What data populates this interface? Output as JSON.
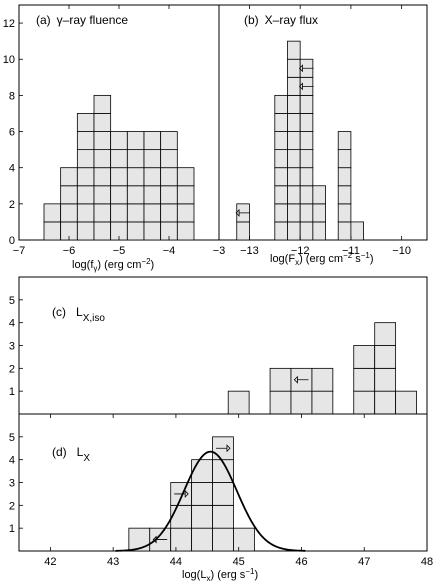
{
  "chart_data": [
    {
      "id": "a",
      "type": "bar",
      "title_prefix": "(a)",
      "title": "γ–ray fluence",
      "xlabel_main": "log(f",
      "xlabel_sub": "γ",
      "xlabel_units": ")  (erg cm",
      "xlabel_sup": "−2",
      "xlabel_end": ")",
      "xlim": [
        -7,
        -3
      ],
      "ylim": [
        0,
        13
      ],
      "xticks": [
        -7,
        -6,
        -5,
        -4,
        -3
      ],
      "xtick_labels": [
        "−7",
        "−6",
        "−5",
        "−4",
        "−3"
      ],
      "yticks": [
        0,
        2,
        4,
        6,
        8,
        10,
        12
      ],
      "ytick_labels": [
        "0",
        "2",
        "4",
        "6",
        "8",
        "10",
        "12"
      ],
      "bin_width": 0.333,
      "bins": [
        {
          "left": -6.5,
          "count": 2
        },
        {
          "left": -6.167,
          "count": 4
        },
        {
          "left": -5.833,
          "count": 7
        },
        {
          "left": -5.5,
          "count": 8
        },
        {
          "left": -5.167,
          "count": 6
        },
        {
          "left": -4.833,
          "count": 6
        },
        {
          "left": -4.5,
          "count": 6
        },
        {
          "left": -4.167,
          "count": 6
        },
        {
          "left": -3.833,
          "count": 4
        }
      ],
      "arrows": []
    },
    {
      "id": "b",
      "type": "bar",
      "title_prefix": "(b)",
      "title": "X–ray flux",
      "xlabel_main": "log(F",
      "xlabel_sub": "x",
      "xlabel_units": ")  (erg cm",
      "xlabel_sup": "−2",
      "xlabel_end": " s",
      "xlabel_sup2": "−1",
      "xlabel_end2": ")",
      "xlim": [
        -13.6,
        -9.5
      ],
      "ylim": [
        0,
        13
      ],
      "xticks": [
        -13,
        -12,
        -11,
        -10
      ],
      "xtick_labels": [
        "−13",
        "−12",
        "−11",
        "−10"
      ],
      "yticks": [],
      "ytick_labels": [],
      "bin_width": 0.25,
      "bins": [
        {
          "left": -13.25,
          "count": 2
        },
        {
          "left": -12.5,
          "count": 8
        },
        {
          "left": -12.25,
          "count": 11
        },
        {
          "left": -12.0,
          "count": 10
        },
        {
          "left": -11.75,
          "count": 3
        },
        {
          "left": -11.25,
          "count": 6
        },
        {
          "left": -11.0,
          "count": 1
        }
      ],
      "arrows": [
        {
          "bin_left": -13.25,
          "level": 1.5,
          "direction": "left"
        },
        {
          "bin_left": -12.0,
          "level": 9.5,
          "direction": "left"
        },
        {
          "bin_left": -12.0,
          "level": 8.5,
          "direction": "left"
        }
      ]
    },
    {
      "id": "c",
      "type": "bar",
      "title_prefix": "(c)",
      "title_main": "L",
      "title_sub": "X,iso",
      "xlim": [
        41.5,
        48
      ],
      "ylim": [
        0,
        6
      ],
      "xticks": [],
      "xtick_labels": [],
      "yticks": [
        1,
        2,
        3,
        4,
        5
      ],
      "ytick_labels": [
        "1",
        "2",
        "3",
        "4",
        "5"
      ],
      "bin_width": 0.333,
      "bins": [
        {
          "left": 44.833,
          "count": 1
        },
        {
          "left": 45.5,
          "count": 2
        },
        {
          "left": 45.833,
          "count": 2
        },
        {
          "left": 46.167,
          "count": 2
        },
        {
          "left": 46.833,
          "count": 3
        },
        {
          "left": 47.167,
          "count": 4
        },
        {
          "left": 47.5,
          "count": 1
        }
      ],
      "arrows": [
        {
          "bin_left": 45.833,
          "level": 1.5,
          "direction": "left"
        }
      ]
    },
    {
      "id": "d",
      "type": "bar",
      "title_prefix": "(d)",
      "title_main": "L",
      "title_sub": "X",
      "xlabel_main": "log(L",
      "xlabel_sub": "x",
      "xlabel_units": ")  (erg s",
      "xlabel_sup": "−1",
      "xlabel_end": ")",
      "xlim": [
        41.5,
        48
      ],
      "ylim": [
        0,
        6
      ],
      "xticks": [
        42,
        43,
        44,
        45,
        46,
        47,
        48
      ],
      "xtick_labels": [
        "42",
        "43",
        "44",
        "45",
        "46",
        "47",
        "48"
      ],
      "yticks": [
        1,
        2,
        3,
        4,
        5
      ],
      "ytick_labels": [
        "1",
        "2",
        "3",
        "4",
        "5"
      ],
      "bin_width": 0.333,
      "bins": [
        {
          "left": 43.25,
          "count": 1
        },
        {
          "left": 43.583,
          "count": 1
        },
        {
          "left": 43.917,
          "count": 3
        },
        {
          "left": 44.25,
          "count": 4
        },
        {
          "left": 44.583,
          "count": 5
        },
        {
          "left": 44.917,
          "count": 1
        }
      ],
      "arrows": [
        {
          "bin_left": 43.583,
          "level": 0.5,
          "direction": "left"
        },
        {
          "bin_left": 43.917,
          "level": 2.5,
          "direction": "right"
        },
        {
          "bin_left": 44.583,
          "level": 4.5,
          "direction": "right"
        }
      ],
      "gaussian": {
        "mean": 44.55,
        "sigma": 0.42,
        "peak": 4.35
      }
    }
  ]
}
